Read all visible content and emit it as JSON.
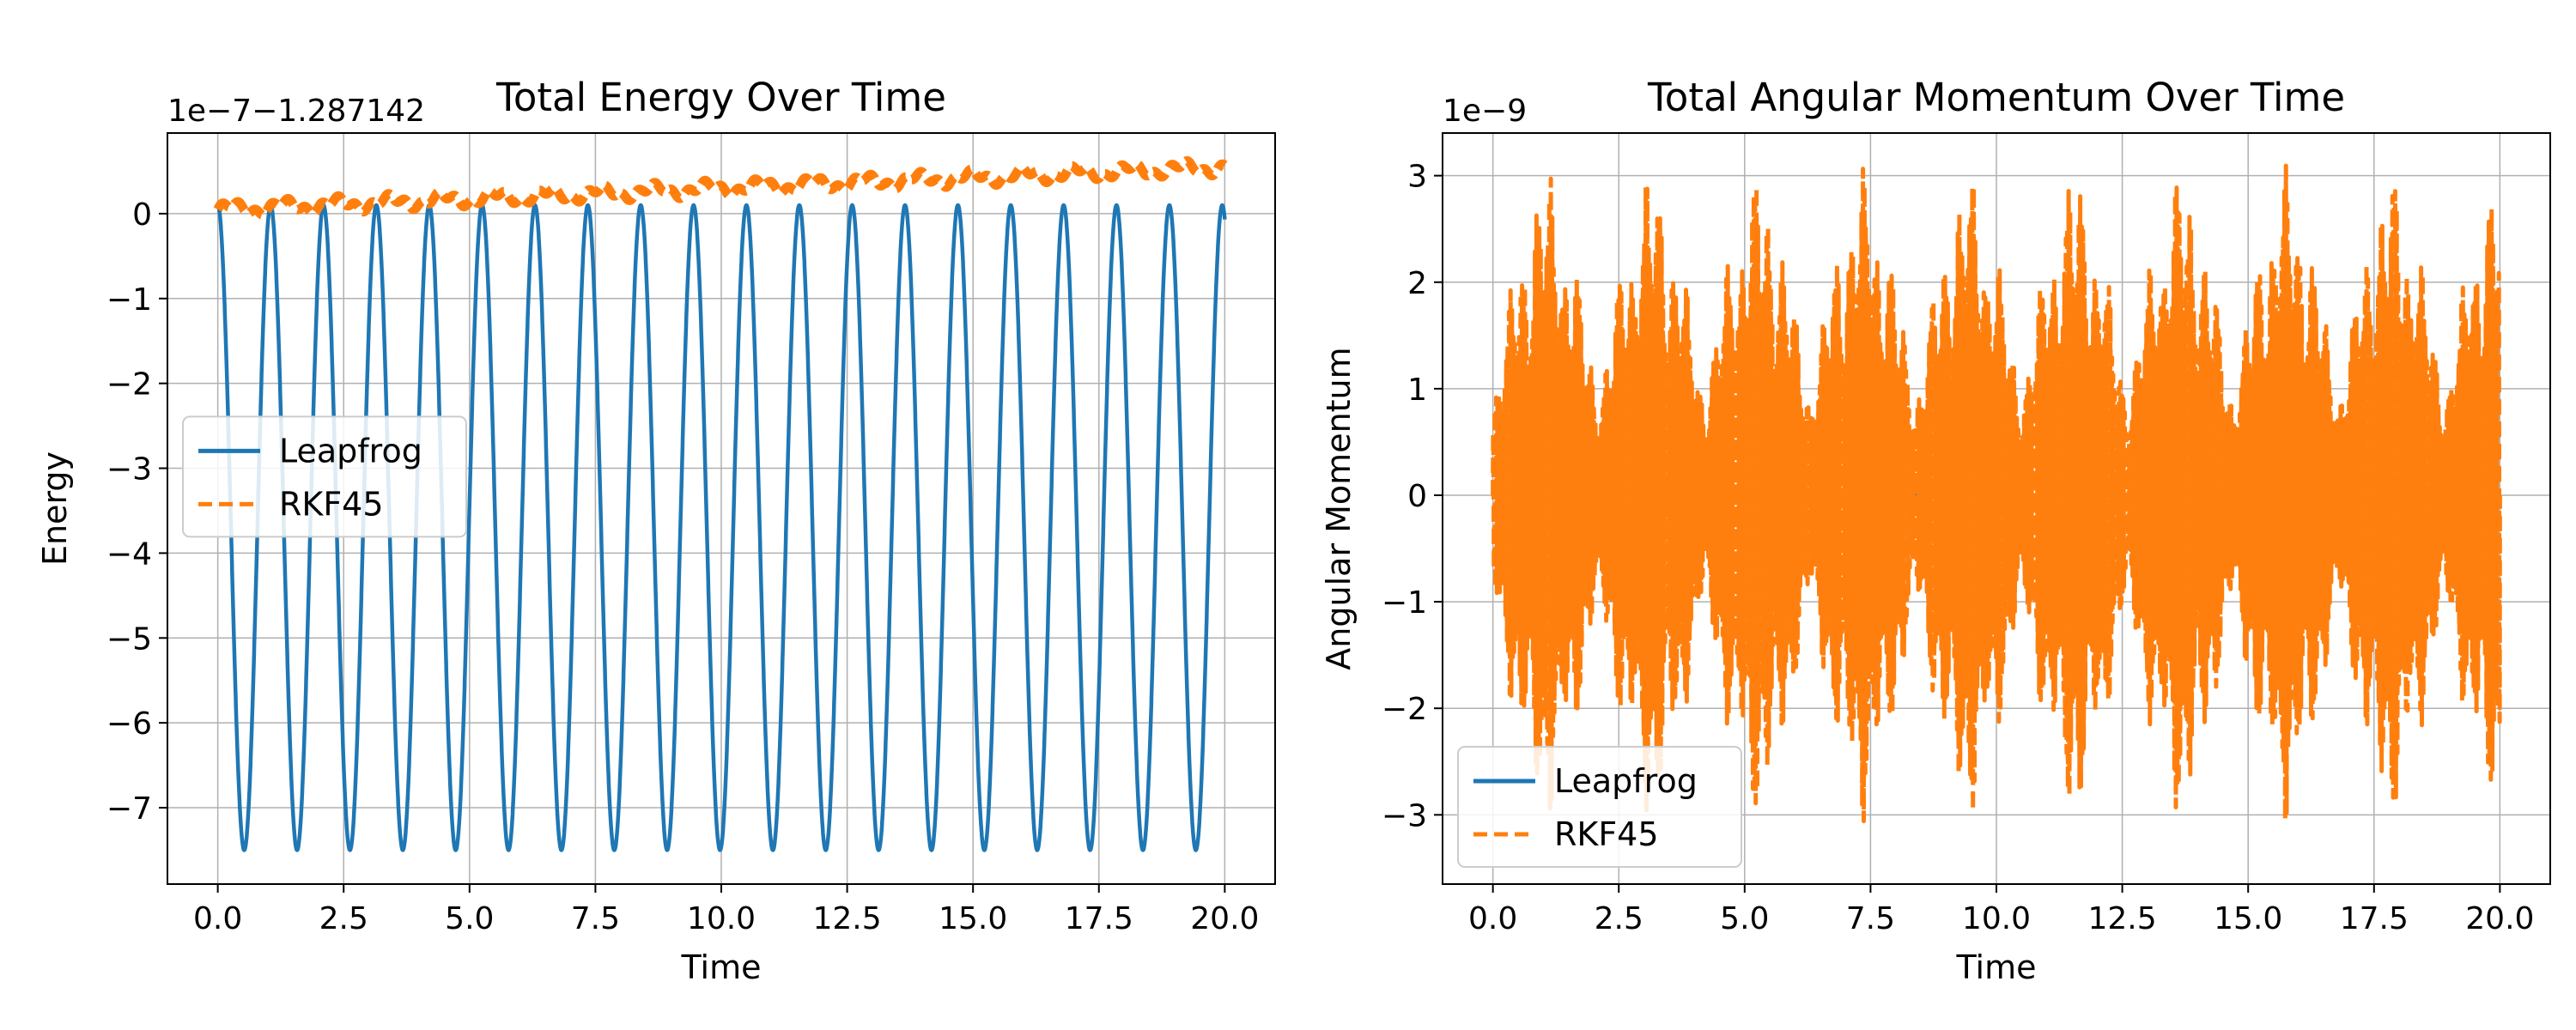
{
  "chart_data": [
    {
      "type": "line",
      "title": "Total Energy Over Time",
      "xlabel": "Time",
      "ylabel": "Energy",
      "offset_label": "1e−7−1.287142",
      "xlim": [
        -1.0,
        21.0
      ],
      "ylim": [
        -7.9,
        0.95
      ],
      "xticks": [
        0,
        2.5,
        5,
        7.5,
        10,
        12.5,
        15,
        17.5,
        20
      ],
      "xtick_labels": [
        "0.0",
        "2.5",
        "5.0",
        "7.5",
        "10.0",
        "12.5",
        "15.0",
        "17.5",
        "20.0"
      ],
      "yticks": [
        0,
        -1,
        -2,
        -3,
        -4,
        -5,
        -6,
        -7
      ],
      "ytick_labels": [
        "0",
        "−1",
        "−2",
        "−3",
        "−4",
        "−5",
        "−6",
        "−7"
      ],
      "grid": true,
      "legend": {
        "placement": "center-left",
        "entries": [
          "Leapfrog",
          "RKF45"
        ]
      },
      "series": [
        {
          "name": "Leapfrog",
          "style": "solid",
          "color": "#1f77b4",
          "x_range": [
            0,
            20
          ],
          "oscillation_period": 1.05,
          "min": -7.5,
          "max": 0.1
        },
        {
          "name": "RKF45",
          "style": "dashed",
          "color": "#ff7f0e",
          "x_range": [
            0,
            20
          ],
          "start": 0.05,
          "end": 0.55,
          "oscillation_period": 1.05,
          "oscillation_amplitude": 0.06
        }
      ]
    },
    {
      "type": "line",
      "title": "Total Angular Momentum Over Time",
      "xlabel": "Time",
      "ylabel": "Angular Momentum",
      "offset_label": "1e−9",
      "xlim": [
        -1.0,
        21.0
      ],
      "ylim": [
        -3.65,
        3.4
      ],
      "xticks": [
        0,
        2.5,
        5,
        7.5,
        10,
        12.5,
        15,
        17.5,
        20
      ],
      "xtick_labels": [
        "0.0",
        "2.5",
        "5.0",
        "7.5",
        "10.0",
        "12.5",
        "15.0",
        "17.5",
        "20.0"
      ],
      "yticks": [
        3,
        2,
        1,
        0,
        -1,
        -2,
        -3
      ],
      "ytick_labels": [
        "3",
        "2",
        "1",
        "0",
        "−1",
        "−2",
        "−3"
      ],
      "grid": true,
      "legend": {
        "placement": "lower-left",
        "entries": [
          "Leapfrog",
          "RKF45"
        ]
      },
      "series": [
        {
          "name": "Leapfrog",
          "style": "solid",
          "color": "#1f77b4",
          "x_range": [
            0,
            20
          ],
          "value": 0
        },
        {
          "name": "RKF45",
          "style": "dashed",
          "color": "#ff7f0e",
          "x_range": [
            0,
            20
          ],
          "max": 3.1,
          "min": -3.3,
          "envelope_period": 2.1
        }
      ]
    }
  ]
}
